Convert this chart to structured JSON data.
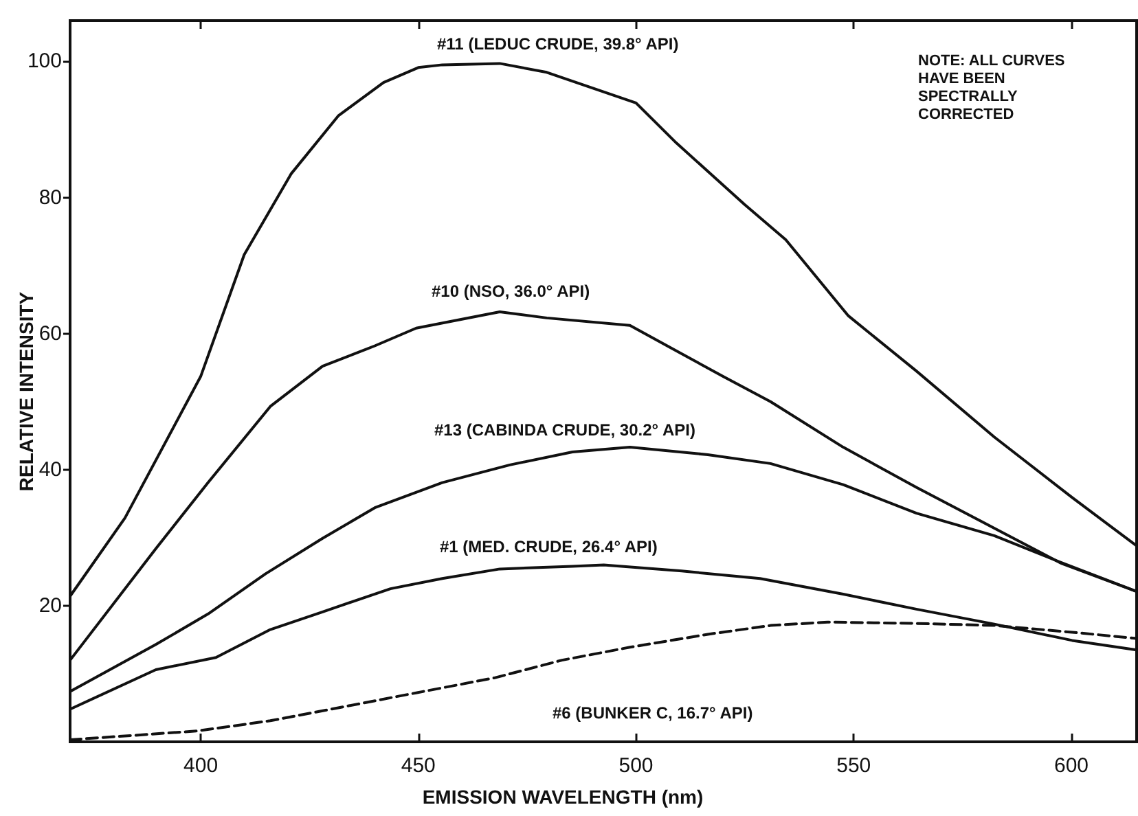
{
  "chart_data": {
    "type": "line",
    "xlabel": "EMISSION WAVELENGTH (nm)",
    "ylabel": "RELATIVE INTENSITY",
    "xlim": [
      370,
      615
    ],
    "ylim": [
      0,
      106
    ],
    "xticks": [
      400,
      450,
      500,
      550,
      600
    ],
    "yticks": [
      20,
      40,
      60,
      80,
      100
    ],
    "grid": false,
    "marker": "none",
    "series": [
      {
        "name": "#11 (LEDUC CRUDE, 39.8° API)",
        "color": "#111111",
        "line_style": "solid",
        "x": [
          370,
          382.6,
          400,
          410,
          420.8,
          431.6,
          442,
          450,
          455.5,
          468.7,
          479.5,
          500,
          509.3,
          524.9,
          534.4,
          548.8,
          564.4,
          582.3,
          600.2,
          615
        ],
        "values": [
          21.4,
          32.9,
          53.7,
          71.6,
          83.5,
          92,
          96.9,
          99.1,
          99.5,
          99.7,
          98.4,
          93.9,
          88,
          79,
          73.8,
          62.6,
          54.5,
          44.8,
          35.9,
          28.8
        ]
      },
      {
        "name": "#10 (NSO, 36.0° API)",
        "color": "#111111",
        "line_style": "solid",
        "x": [
          370,
          389.7,
          401.7,
          416,
          428,
          440,
          449.5,
          468.7,
          479.5,
          498.6,
          520,
          530.9,
          547.6,
          564.4,
          582.3,
          597.8,
          615
        ],
        "values": [
          12,
          28.4,
          38.1,
          49.3,
          55.2,
          58.2,
          60.8,
          63.2,
          62.3,
          61.2,
          53.7,
          50,
          43.3,
          37.4,
          31.4,
          26.2,
          22.1
        ]
      },
      {
        "name": "#13 (CABINDA CRUDE, 30.2° API)",
        "color": "#111111",
        "line_style": "solid",
        "x": [
          370,
          389.7,
          401.7,
          414.9,
          428,
          440,
          455.5,
          471,
          485.4,
          498.6,
          516.5,
          530.9,
          547.6,
          564.4,
          582.3,
          596.7,
          615
        ],
        "values": [
          7.4,
          14.3,
          18.8,
          24.7,
          29.9,
          34.4,
          38.1,
          40.7,
          42.6,
          43.3,
          42.2,
          40.9,
          37.8,
          33.6,
          30.3,
          26.6,
          22.1
        ]
      },
      {
        "name": "#1 (MED. CRUDE, 26.4° API)",
        "color": "#111111",
        "line_style": "solid",
        "x": [
          370,
          389.7,
          403.5,
          416,
          428,
          443.6,
          455.5,
          468.7,
          485.4,
          492.6,
          510.5,
          528.5,
          547.6,
          564.4,
          582.3,
          600.2,
          615
        ],
        "values": [
          4.8,
          10.6,
          12.4,
          16.5,
          19.1,
          22.5,
          24,
          25.4,
          25.8,
          26,
          25.1,
          24,
          21.7,
          19.5,
          17.3,
          14.9,
          13.5
        ]
      },
      {
        "name": "#6 (BUNKER C, 16.7° API)",
        "color": "#111111",
        "line_style": "dashed",
        "x": [
          370,
          399.3,
          416,
          431.6,
          449.5,
          467.5,
          483,
          498.6,
          516.5,
          530.9,
          544,
          564.4,
          582.3,
          600.2,
          615
        ],
        "values": [
          0.3,
          1.6,
          3.1,
          5,
          7.2,
          9.4,
          12,
          13.9,
          15.8,
          17.1,
          17.6,
          17.4,
          17.1,
          16.1,
          15.2
        ]
      }
    ],
    "annotations": [
      "NOTE: ALL CURVES HAVE BEEN SPECTRALLY CORRECTED"
    ]
  }
}
